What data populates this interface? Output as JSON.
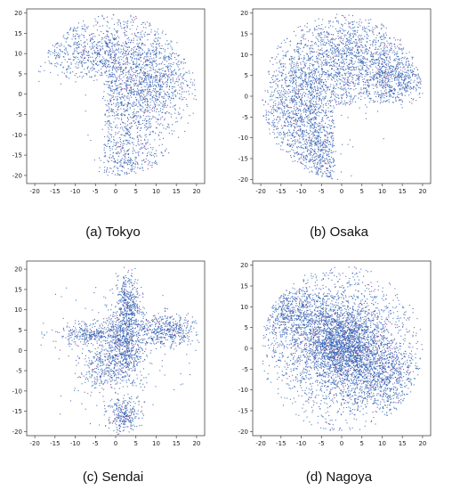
{
  "chart_data": [
    {
      "type": "scatter",
      "caption": "(a) Tokyo",
      "xlim": [
        -22,
        22
      ],
      "ylim": [
        -22,
        21
      ],
      "xticks": [
        -20,
        -15,
        -10,
        -5,
        0,
        5,
        10,
        15,
        20
      ],
      "yticks": [
        -20,
        -15,
        -10,
        -5,
        0,
        5,
        10,
        15,
        20
      ],
      "grid": false,
      "point_color": "#2f5fb3",
      "accent_color": "#8a3a8a",
      "seed": 11,
      "n_points": 2600,
      "clusters": [
        {
          "cx": -8,
          "cy": 11,
          "sx": 7,
          "sy": 4,
          "w": 0.9
        },
        {
          "cx": 4,
          "cy": 8,
          "sx": 6,
          "sy": 6,
          "w": 1.0
        },
        {
          "cx": 3,
          "cy": -3,
          "sx": 5,
          "sy": 7,
          "w": 1.0
        },
        {
          "cx": 12,
          "cy": 3,
          "sx": 4,
          "sy": 6,
          "w": 0.6
        },
        {
          "cx": 2,
          "cy": -16,
          "sx": 5,
          "sy": 3,
          "w": 0.5
        }
      ],
      "mask": {
        "type": "disc",
        "r": 20,
        "exclude": [
          {
            "x0": -21,
            "x1": -3,
            "y0": -21,
            "y1": 4
          }
        ]
      }
    },
    {
      "type": "scatter",
      "caption": "(b) Osaka",
      "xlim": [
        -22,
        22
      ],
      "ylim": [
        -21,
        21
      ],
      "xticks": [
        -20,
        -15,
        -10,
        -5,
        0,
        5,
        10,
        15,
        20
      ],
      "yticks": [
        -20,
        -15,
        -10,
        -5,
        0,
        5,
        10,
        15,
        20
      ],
      "grid": false,
      "point_color": "#2f5fb3",
      "accent_color": "#8a3a8a",
      "seed": 23,
      "n_points": 3600,
      "clusters": [
        {
          "cx": -6,
          "cy": 5,
          "sx": 8,
          "sy": 7,
          "w": 1.0
        },
        {
          "cx": 5,
          "cy": 10,
          "sx": 8,
          "sy": 5,
          "w": 0.8
        },
        {
          "cx": -10,
          "cy": -5,
          "sx": 5,
          "sy": 6,
          "w": 0.7
        },
        {
          "cx": -4,
          "cy": -14,
          "sx": 4,
          "sy": 4,
          "w": 0.5
        },
        {
          "cx": 13,
          "cy": 4,
          "sx": 4,
          "sy": 3,
          "w": 0.4
        }
      ],
      "mask": {
        "type": "disc",
        "r": 20,
        "exclude": [
          {
            "x0": -2,
            "x1": 21,
            "y0": -21,
            "y1": -2
          }
        ]
      }
    },
    {
      "type": "scatter",
      "caption": "(c) Sendai",
      "xlim": [
        -22,
        22
      ],
      "ylim": [
        -21,
        22
      ],
      "xticks": [
        -20,
        -15,
        -10,
        -5,
        0,
        5,
        10,
        15,
        20
      ],
      "yticks": [
        -20,
        -15,
        -10,
        -5,
        0,
        5,
        10,
        15,
        20
      ],
      "grid": false,
      "point_color": "#2f5fb3",
      "accent_color": "#8a3a8a",
      "seed": 37,
      "n_points": 2600,
      "clusters": [
        {
          "cx": 2,
          "cy": 1,
          "sx": 2.5,
          "sy": 5,
          "w": 1.0
        },
        {
          "cx": 3,
          "cy": 11,
          "sx": 1.5,
          "sy": 4,
          "w": 0.5
        },
        {
          "cx": 12,
          "cy": 5,
          "sx": 4,
          "sy": 2,
          "w": 0.6
        },
        {
          "cx": -6,
          "cy": 4,
          "sx": 4,
          "sy": 1.5,
          "w": 0.4
        },
        {
          "cx": -4,
          "cy": -4,
          "sx": 3,
          "sy": 3,
          "w": 0.3
        },
        {
          "cx": 2,
          "cy": -16,
          "sx": 2,
          "sy": 2,
          "w": 0.35
        },
        {
          "cx": 0,
          "cy": 0,
          "sx": 9,
          "sy": 9,
          "w": 0.25
        }
      ],
      "mask": {
        "type": "disc",
        "r": 21,
        "exclude": []
      }
    },
    {
      "type": "scatter",
      "caption": "(d) Nagoya",
      "xlim": [
        -22,
        22
      ],
      "ylim": [
        -21,
        21
      ],
      "xticks": [
        -20,
        -15,
        -10,
        -5,
        0,
        5,
        10,
        15,
        20
      ],
      "yticks": [
        -20,
        -15,
        -10,
        -5,
        0,
        5,
        10,
        15,
        20
      ],
      "grid": false,
      "point_color": "#2f5fb3",
      "accent_color": "#8a3a8a",
      "seed": 53,
      "n_points": 5200,
      "clusters": [
        {
          "cx": 0,
          "cy": 1,
          "sx": 5,
          "sy": 5,
          "w": 1.0
        },
        {
          "cx": 0,
          "cy": 0,
          "sx": 11,
          "sy": 11,
          "w": 1.0
        },
        {
          "cx": -12,
          "cy": 8,
          "sx": 5,
          "sy": 4,
          "w": 0.4
        },
        {
          "cx": 10,
          "cy": -6,
          "sx": 5,
          "sy": 5,
          "w": 0.4
        }
      ],
      "mask": {
        "type": "disc",
        "r": 20,
        "exclude": []
      }
    }
  ]
}
